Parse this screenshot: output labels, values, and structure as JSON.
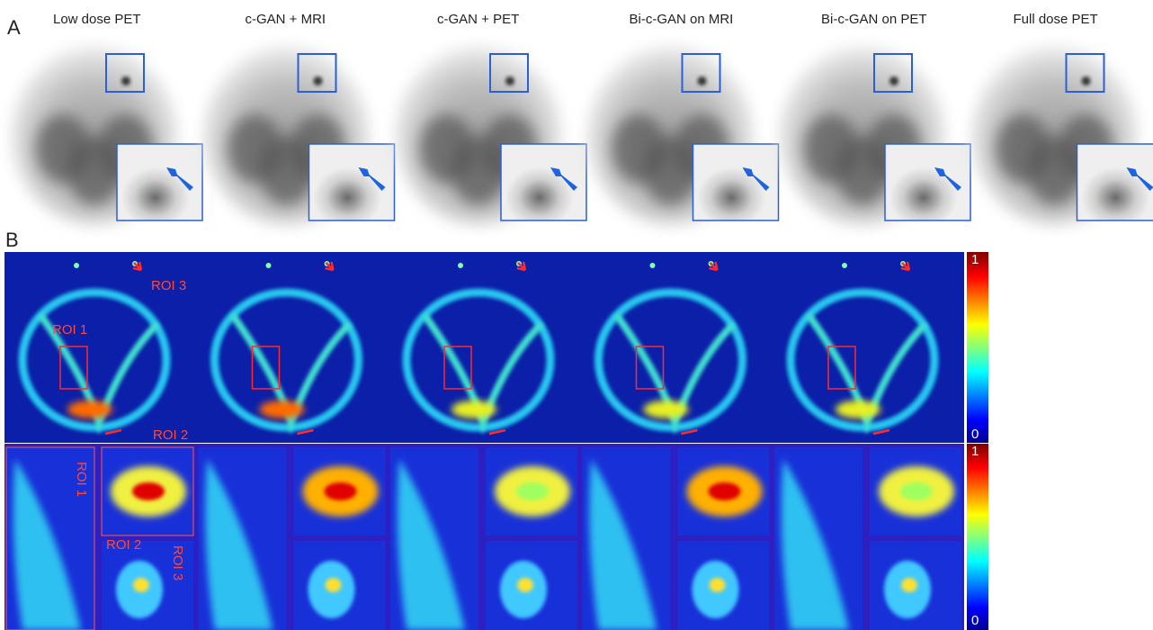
{
  "panel_a": {
    "label": "A",
    "titles": [
      "Low dose PET",
      "c-GAN + MRI",
      "c-GAN + PET",
      "Bi-c-GAN on MRI",
      "Bi-c-GAN on PET",
      "Full dose PET"
    ]
  },
  "panel_b": {
    "label": "B",
    "roi_labels": [
      "ROI 1",
      "ROI 2",
      "ROI 3"
    ],
    "colorbar": {
      "max": 1,
      "min": 0
    }
  }
}
